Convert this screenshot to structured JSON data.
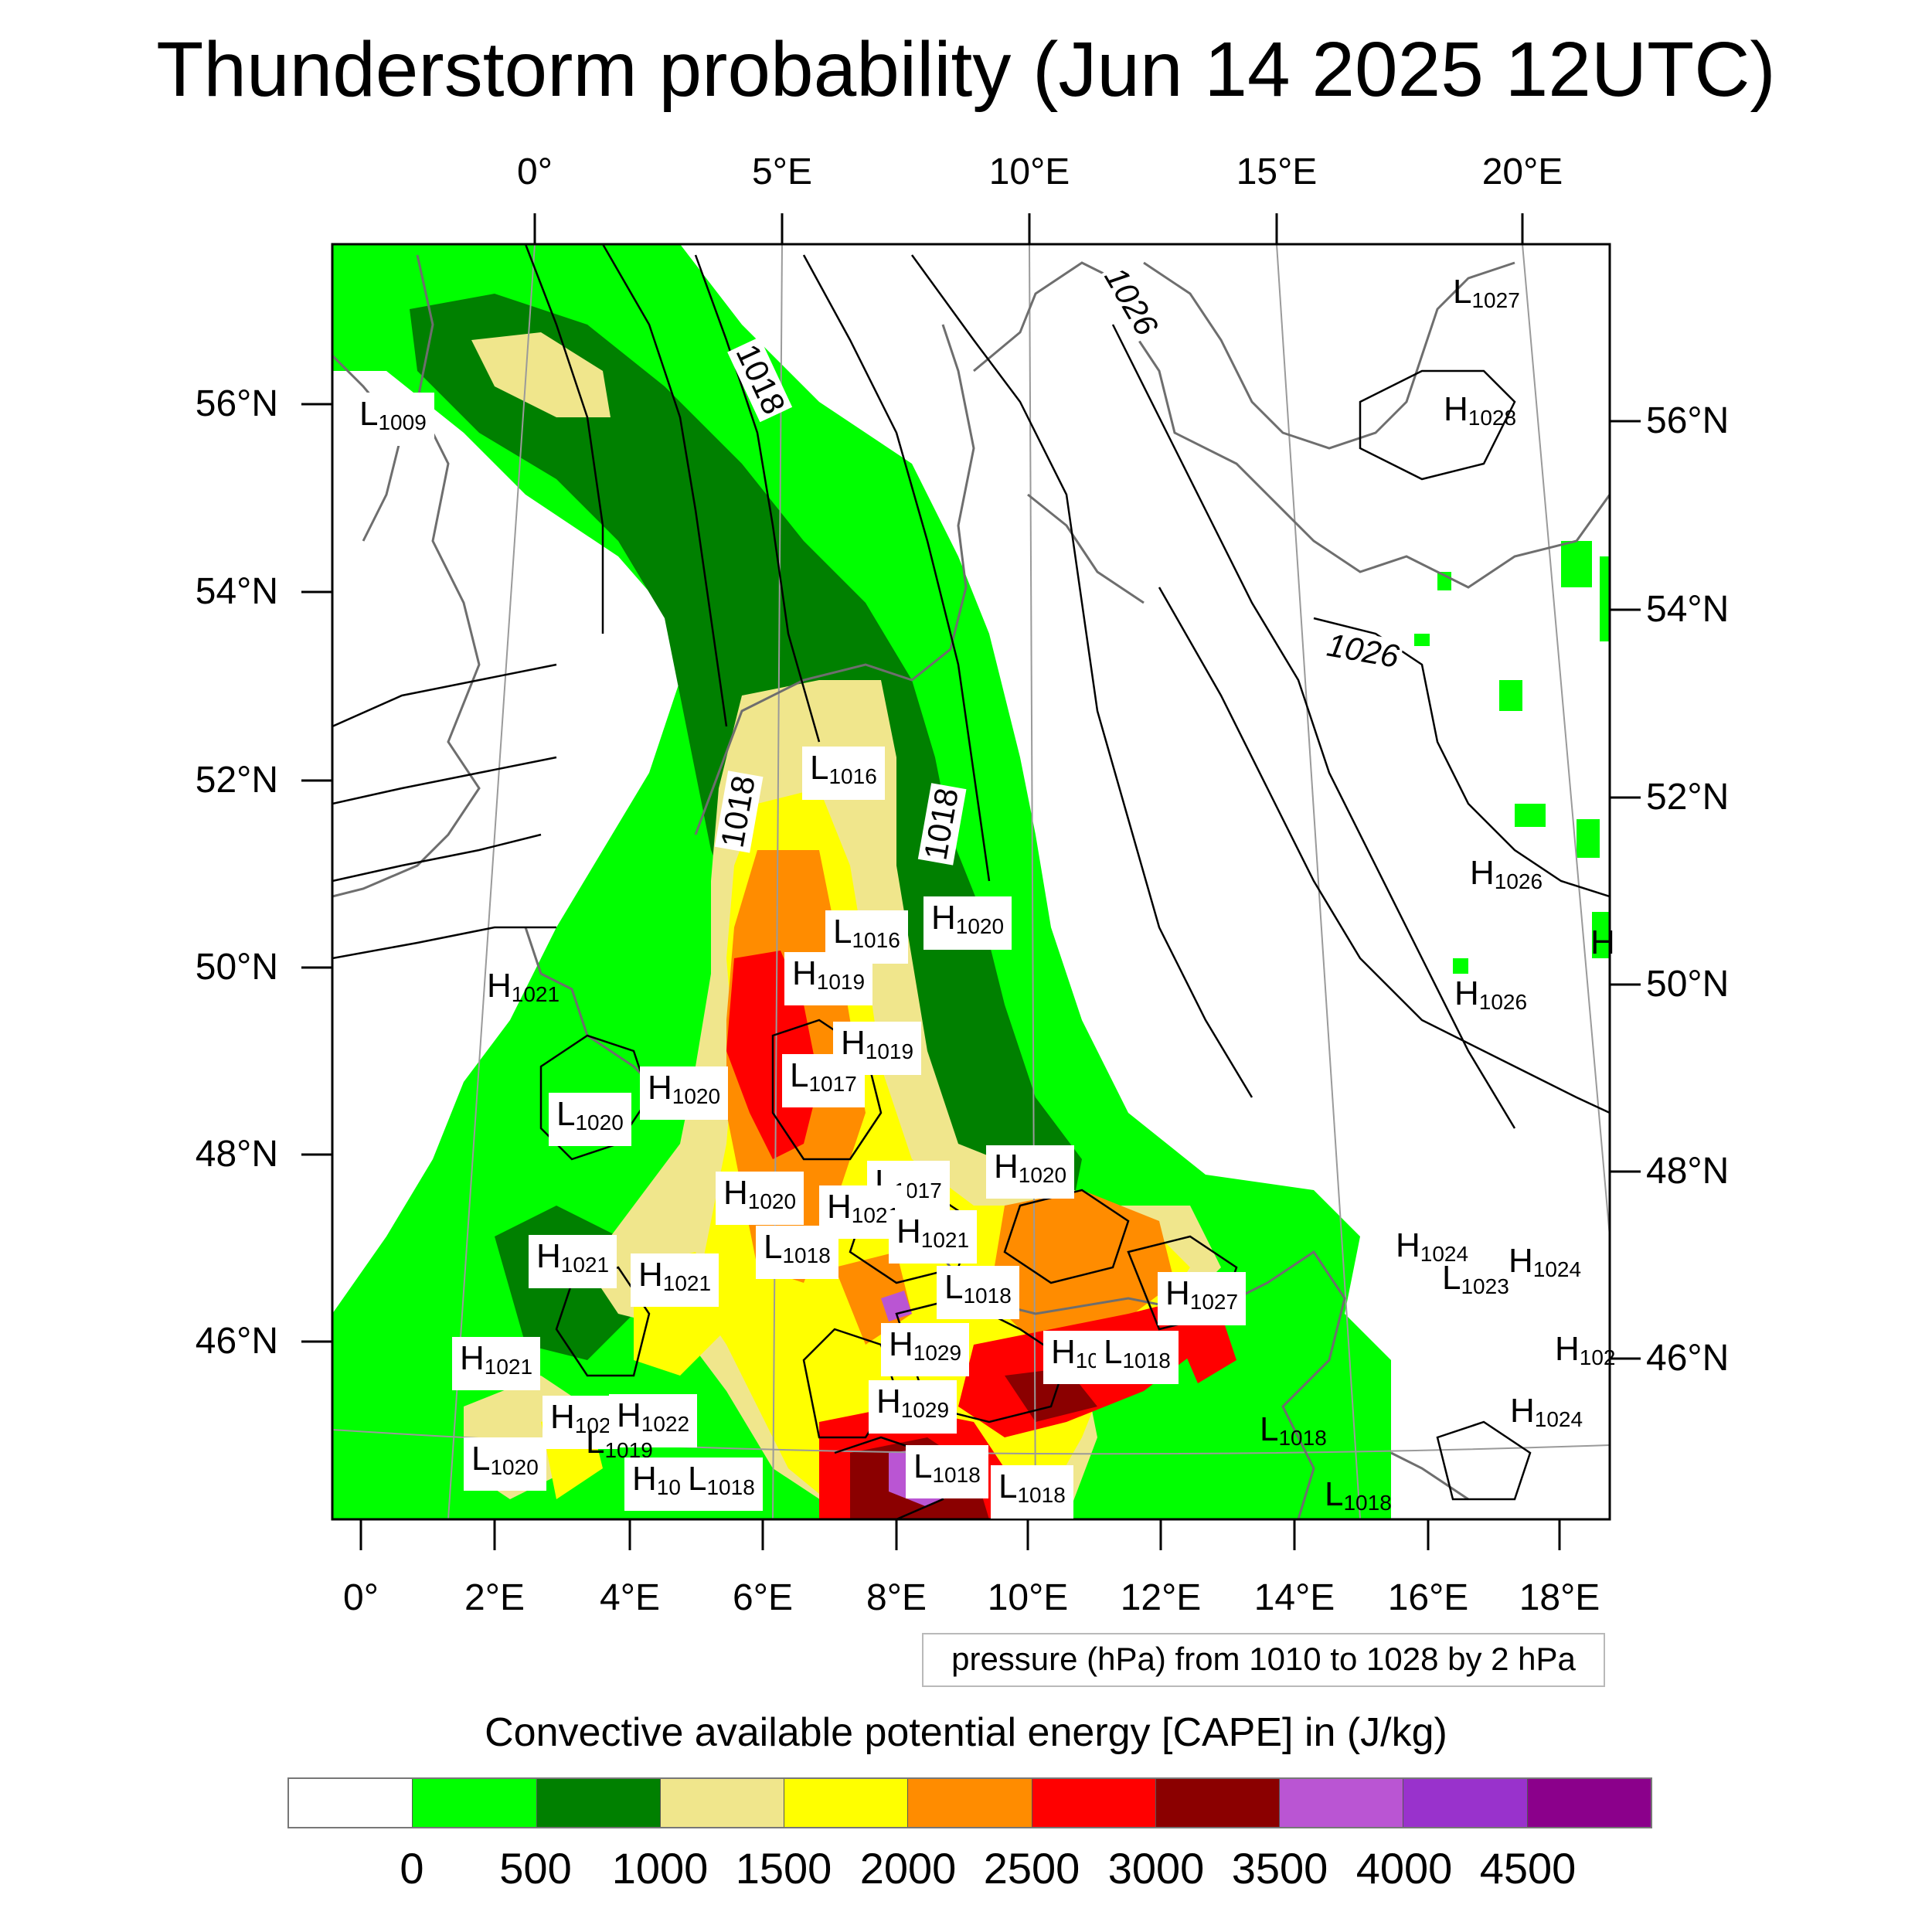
{
  "title": "Thunderstorm probability (Jun 14 2025 12UTC)",
  "axes": {
    "top_ticks": [
      "0°",
      "5°E",
      "10°E",
      "15°E",
      "20°E"
    ],
    "bottom_ticks": [
      "0°",
      "2°E",
      "4°E",
      "6°E",
      "8°E",
      "10°E",
      "12°E",
      "14°E",
      "16°E",
      "18°E"
    ],
    "left_ticks": [
      "56°N",
      "54°N",
      "52°N",
      "50°N",
      "48°N",
      "46°N"
    ],
    "right_ticks": [
      "56°N",
      "54°N",
      "52°N",
      "50°N",
      "48°N",
      "46°N"
    ]
  },
  "isobar_labels": [
    "1018",
    "1026",
    "1018",
    "1018",
    "1026"
  ],
  "pressure_centers": [
    {
      "letter": "L",
      "value": "1009"
    },
    {
      "letter": "L",
      "value": "1027"
    },
    {
      "letter": "H",
      "value": "1028"
    },
    {
      "letter": "L",
      "value": "1016"
    },
    {
      "letter": "H",
      "value": "1026"
    },
    {
      "letter": "L",
      "value": "1016"
    },
    {
      "letter": "H",
      "value": "1020"
    },
    {
      "letter": "H",
      "value": "1019"
    },
    {
      "letter": "H",
      "value": "1021"
    },
    {
      "letter": "H",
      "value": "1026"
    },
    {
      "letter": "H",
      "value": "1019"
    },
    {
      "letter": "L",
      "value": "1017"
    },
    {
      "letter": "H",
      "value": "1020"
    },
    {
      "letter": "L",
      "value": "1020"
    },
    {
      "letter": "L",
      "value": "1017"
    },
    {
      "letter": "H",
      "value": "1020"
    },
    {
      "letter": "H",
      "value": "1020"
    },
    {
      "letter": "H",
      "value": "1021"
    },
    {
      "letter": "H",
      "value": "1021"
    },
    {
      "letter": "L",
      "value": "1018"
    },
    {
      "letter": "H",
      "value": "1021"
    },
    {
      "letter": "H",
      "value": "1021"
    },
    {
      "letter": "L",
      "value": "1018"
    },
    {
      "letter": "H",
      "value": "1024"
    },
    {
      "letter": "H",
      "value": "1024"
    },
    {
      "letter": "L",
      "value": "1023"
    },
    {
      "letter": "H",
      "value": "1027"
    },
    {
      "letter": "H",
      "value": "1029"
    },
    {
      "letter": "H",
      "value": "10"
    },
    {
      "letter": "L",
      "value": "1018"
    },
    {
      "letter": "H",
      "value": "1021"
    },
    {
      "letter": "H",
      "value": "102"
    },
    {
      "letter": "H",
      "value": "1022"
    },
    {
      "letter": "H",
      "value": "1029"
    },
    {
      "letter": "L",
      "value": "1019"
    },
    {
      "letter": "L",
      "value": "1020"
    },
    {
      "letter": "H",
      "value": "10"
    },
    {
      "letter": "L",
      "value": "1018"
    },
    {
      "letter": "L",
      "value": "1018"
    },
    {
      "letter": "L",
      "value": "1018"
    },
    {
      "letter": "L",
      "value": "1018"
    },
    {
      "letter": "L",
      "value": "1018"
    },
    {
      "letter": "H",
      "value": "1024"
    },
    {
      "letter": "H",
      "value": "102"
    },
    {
      "letter": "H",
      "value": ""
    }
  ],
  "pressure_note": "pressure (hPa) from 1010 to 1028 by 2 hPa",
  "colorbar": {
    "title": "Convective available potential energy [CAPE] in (J/kg)",
    "labels": [
      "0",
      "500",
      "1000",
      "1500",
      "2000",
      "2500",
      "3000",
      "3500",
      "4000",
      "4500"
    ],
    "colors": [
      "#ffffff",
      "#00ff00",
      "#008000",
      "#f0e68c",
      "#ffff00",
      "#ff8c00",
      "#ff0000",
      "#8b0000",
      "#ba55d3",
      "#9932cc",
      "#8b008b"
    ]
  },
  "fill_colors": {
    "c500": "#00ff00",
    "c1000": "#008000",
    "c1500": "#f0e68c",
    "c2000": "#ffff00",
    "c2500": "#ff8c00",
    "c3000": "#ff0000",
    "c3500": "#8b0000",
    "c4000": "#ba55d3"
  }
}
